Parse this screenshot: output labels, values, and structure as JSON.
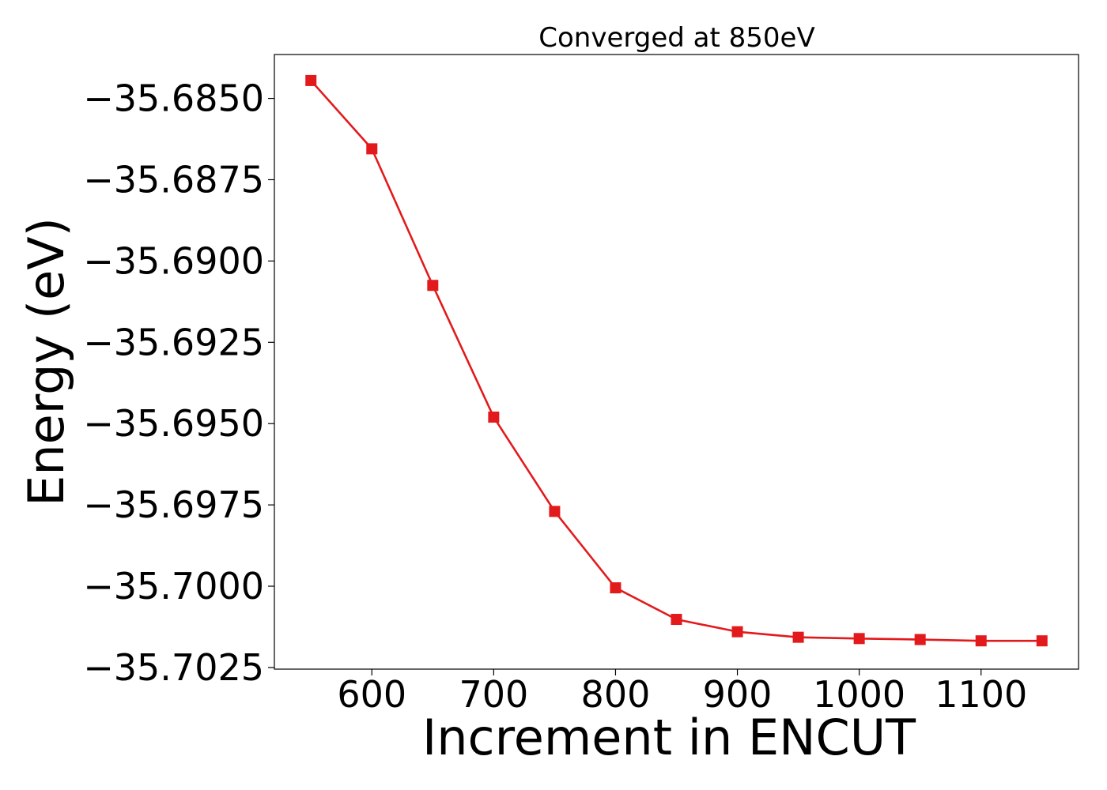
{
  "chart_data": {
    "type": "line",
    "title": "Converged at 850eV",
    "xlabel": "Increment in ENCUT",
    "ylabel": "Energy (eV)",
    "x": [
      550,
      600,
      650,
      700,
      750,
      800,
      850,
      900,
      950,
      1000,
      1050,
      1100,
      1150
    ],
    "series": [
      {
        "values": [
          -35.68445,
          -35.68655,
          -35.69075,
          -35.6948,
          -35.6977,
          -35.70005,
          -35.70102,
          -35.7014,
          -35.70157,
          -35.70161,
          -35.70164,
          -35.70168,
          -35.70168
        ],
        "color": "#e31a1c",
        "marker": "square"
      }
    ],
    "xticks": [
      600,
      700,
      800,
      900,
      1000,
      1100
    ],
    "xtick_labels": [
      "600",
      "700",
      "800",
      "900",
      "1000",
      "1100"
    ],
    "yticks": [
      -35.685,
      -35.6875,
      -35.69,
      -35.6925,
      -35.695,
      -35.6975,
      -35.7,
      -35.7025
    ],
    "ytick_labels": [
      "−35.6850",
      "−35.6875",
      "−35.6900",
      "−35.6925",
      "−35.6950",
      "−35.6975",
      "−35.7000",
      "−35.7025"
    ],
    "xlim": [
      520,
      1180
    ],
    "ylim": [
      -35.70255,
      -35.68365
    ],
    "grid": false,
    "legend": "none"
  }
}
